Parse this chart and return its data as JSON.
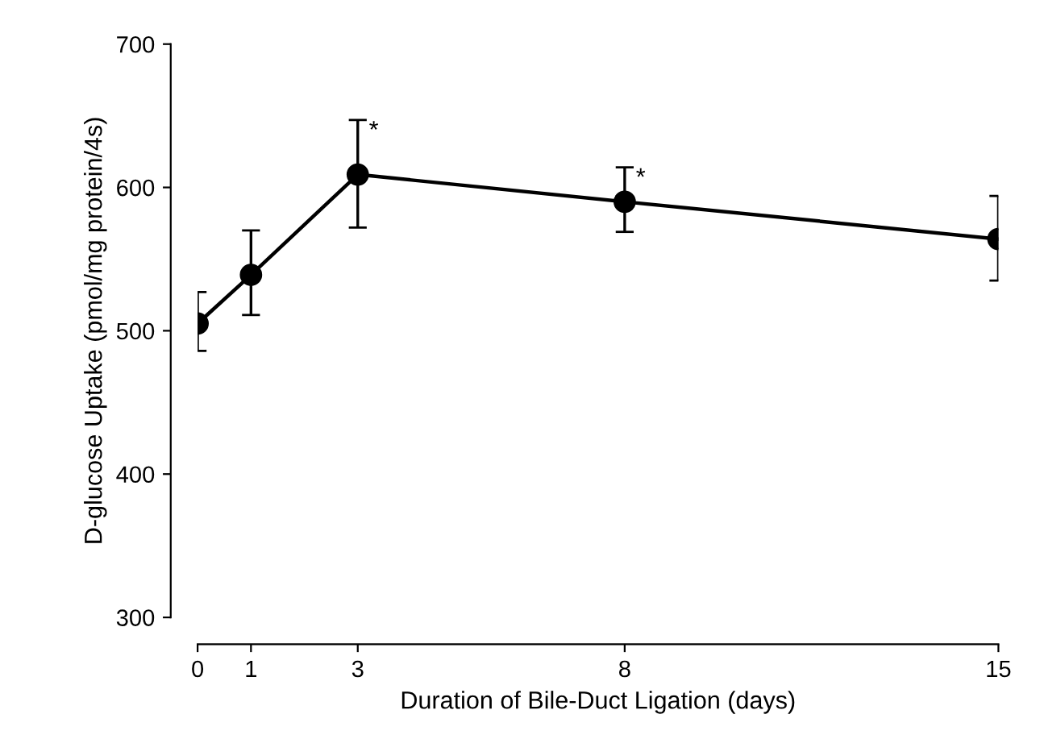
{
  "chart_data": {
    "type": "line",
    "xlabel": "Duration of Bile-Duct Ligation (days)",
    "ylabel": "D-glucose Uptake (pmol/mg protein/4s)",
    "x": [
      0,
      1,
      3,
      8,
      15
    ],
    "series": [
      {
        "color": "#000000",
        "values": [
          505,
          539,
          609,
          590,
          564
        ],
        "errors": [
          [
            486,
            527
          ],
          [
            511,
            570
          ],
          [
            572,
            647
          ],
          [
            569,
            614
          ],
          [
            535,
            594
          ]
        ]
      }
    ],
    "xlim": [
      0,
      15
    ],
    "xticks": [
      0,
      1,
      3,
      8,
      15
    ],
    "ylim": [
      300,
      700
    ],
    "yticks": [
      300,
      400,
      500,
      600,
      700
    ],
    "marker": "circle",
    "line_style": "solid",
    "grid": false,
    "legend": false,
    "annotations": [
      {
        "text": "*",
        "x": 3,
        "y": 647
      },
      {
        "text": "*",
        "x": 8,
        "y": 614
      }
    ]
  }
}
